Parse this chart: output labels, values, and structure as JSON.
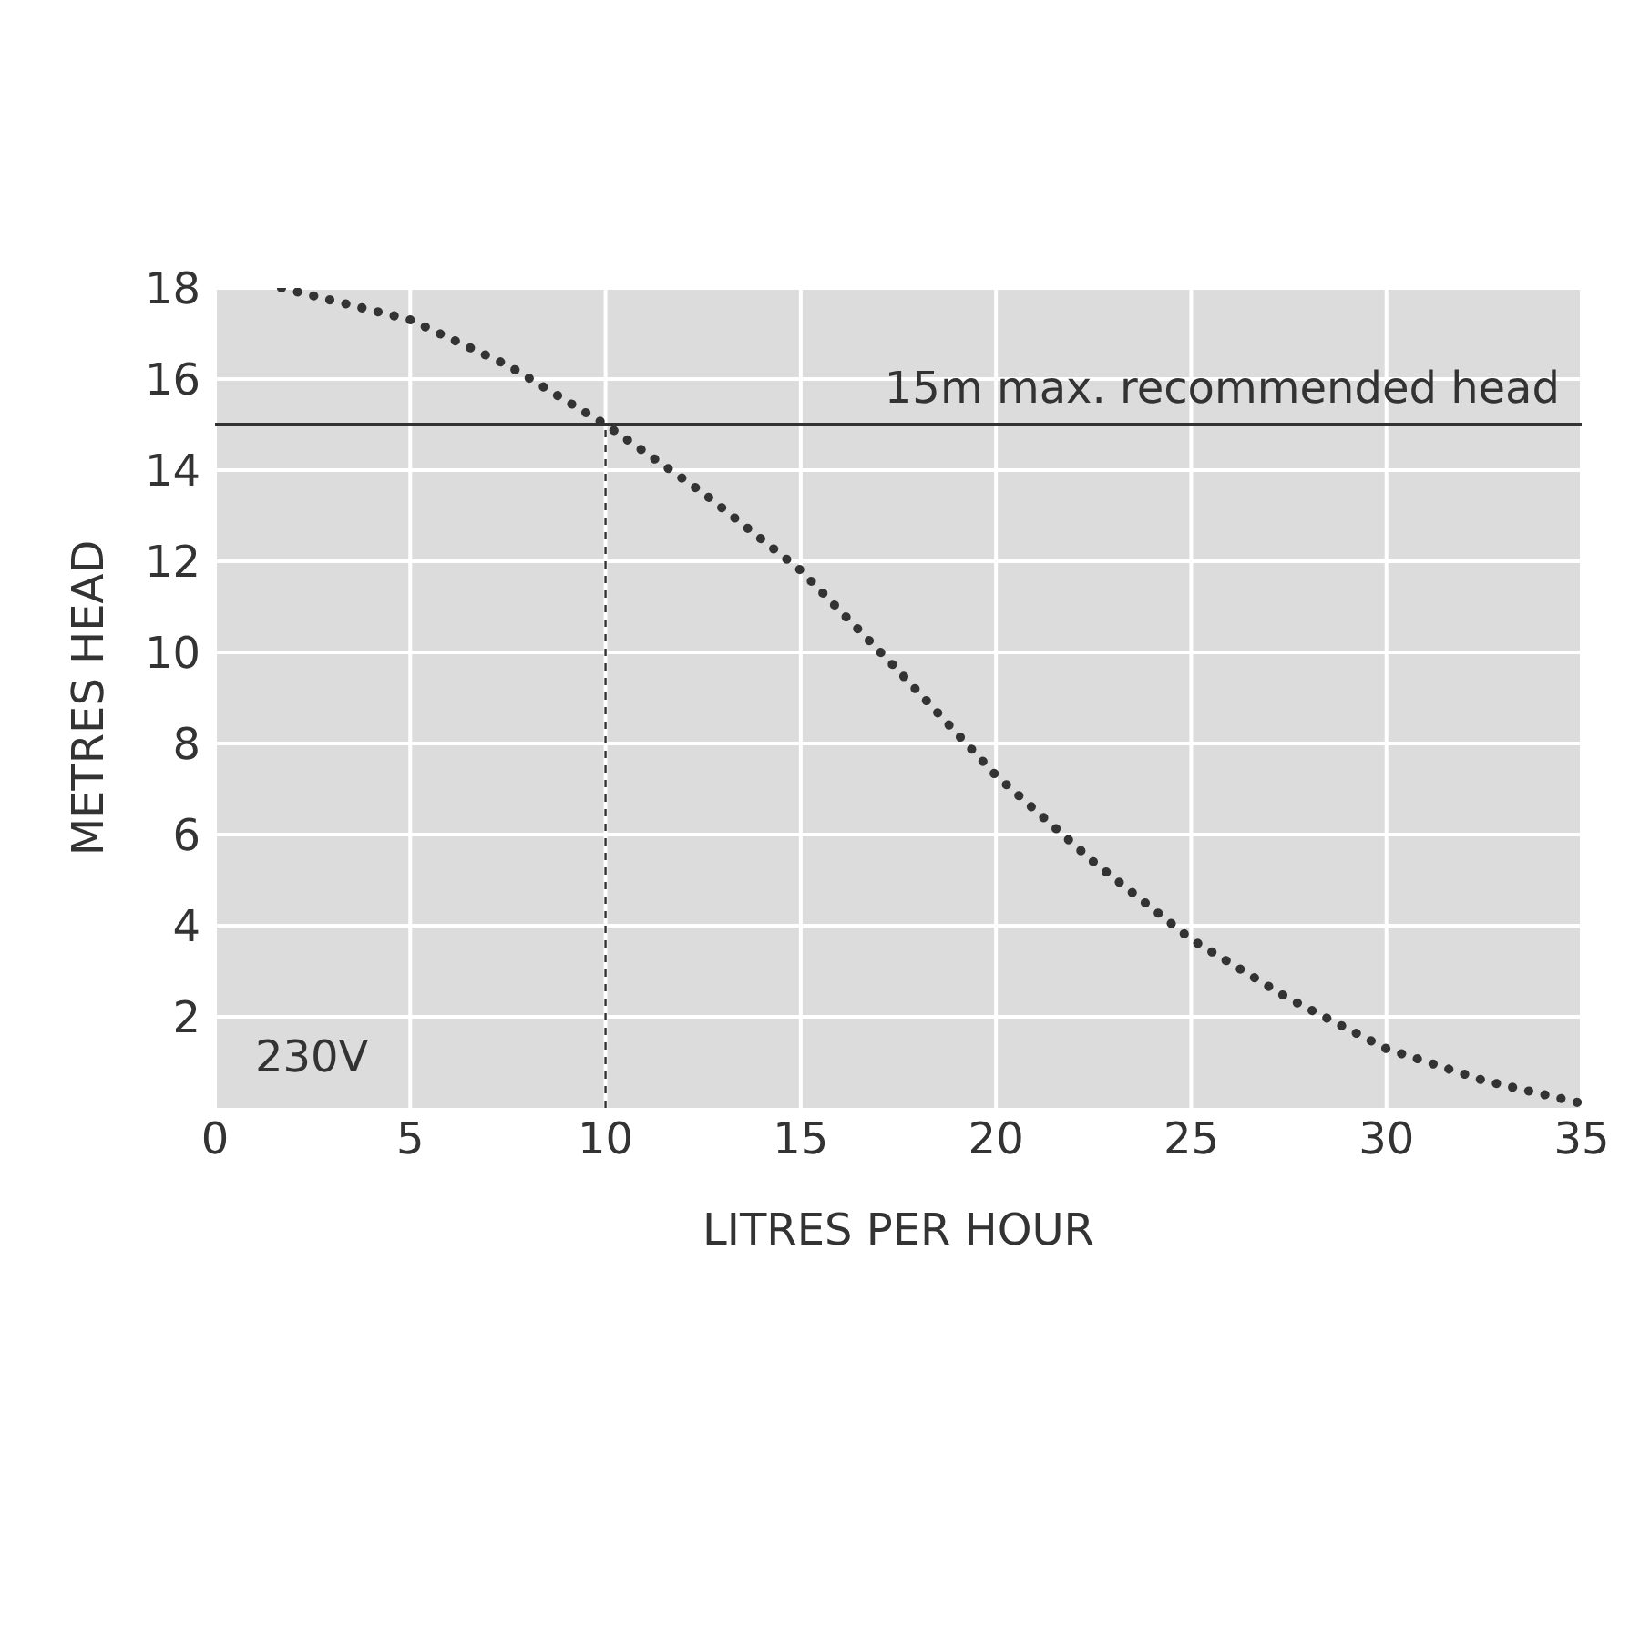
{
  "chart_data": {
    "type": "line",
    "xlabel": "LITRES PER HOUR",
    "ylabel": "METRES HEAD",
    "x": [
      1.7,
      5,
      7.5,
      10,
      12.5,
      15,
      17.5,
      20,
      22.5,
      25,
      27.5,
      30,
      32.5,
      35
    ],
    "series": [
      {
        "color": "#333333",
        "values": [
          18,
          17.3,
          16.3,
          15,
          13.5,
          11.8,
          9.6,
          7.3,
          5.4,
          3.7,
          2.4,
          1.3,
          0.6,
          0.1
        ]
      }
    ],
    "xlim": [
      0,
      35
    ],
    "xticks": [
      0,
      5,
      10,
      15,
      20,
      25,
      30,
      35
    ],
    "ylim": [
      0,
      18
    ],
    "yticks": [
      2,
      4,
      6,
      8,
      10,
      12,
      14,
      16,
      18
    ],
    "ref_lines": [
      {
        "axis": "y",
        "value": 15,
        "label": "15m max. recommended head",
        "color": "#333333",
        "line_style": "solid"
      },
      {
        "axis": "x",
        "value": 10,
        "color": "#333333",
        "line_style": "dashed"
      }
    ],
    "annotations": [
      "230V"
    ],
    "grid": true,
    "marker": "none",
    "line_style": "dotted"
  }
}
